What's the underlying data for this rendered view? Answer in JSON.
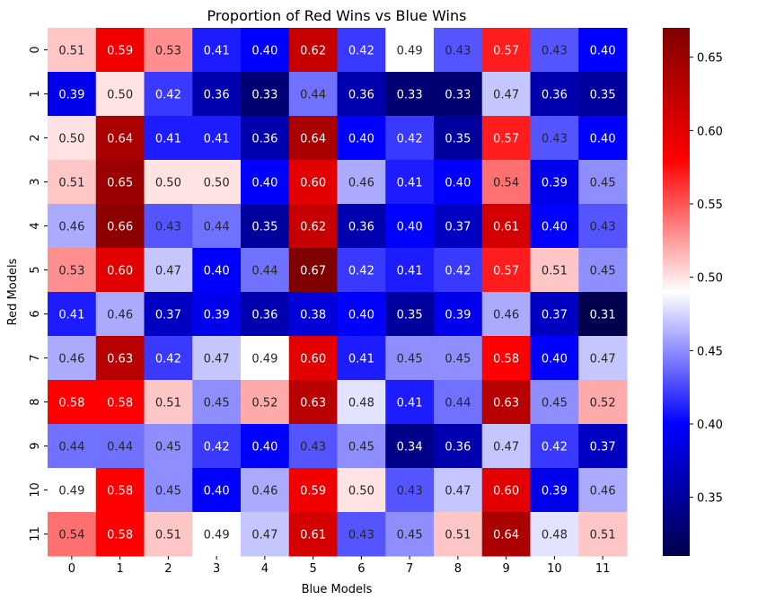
{
  "chart_data": {
    "type": "heatmap",
    "title": "Proportion of Red Wins vs Blue Wins",
    "xlabel": "Blue Models",
    "ylabel": "Red Models",
    "x_categories": [
      "0",
      "1",
      "2",
      "3",
      "4",
      "5",
      "6",
      "7",
      "8",
      "9",
      "10",
      "11"
    ],
    "y_categories": [
      "0",
      "1",
      "2",
      "3",
      "4",
      "5",
      "6",
      "7",
      "8",
      "9",
      "10",
      "11"
    ],
    "values": [
      [
        0.51,
        0.59,
        0.53,
        0.41,
        0.4,
        0.62,
        0.42,
        0.49,
        0.43,
        0.57,
        0.43,
        0.4
      ],
      [
        0.39,
        0.5,
        0.42,
        0.36,
        0.33,
        0.44,
        0.36,
        0.33,
        0.33,
        0.47,
        0.36,
        0.35
      ],
      [
        0.5,
        0.64,
        0.41,
        0.41,
        0.36,
        0.64,
        0.4,
        0.42,
        0.35,
        0.57,
        0.43,
        0.4
      ],
      [
        0.51,
        0.65,
        0.5,
        0.5,
        0.4,
        0.6,
        0.46,
        0.41,
        0.4,
        0.54,
        0.39,
        0.45
      ],
      [
        0.46,
        0.66,
        0.43,
        0.44,
        0.35,
        0.62,
        0.36,
        0.4,
        0.37,
        0.61,
        0.4,
        0.43
      ],
      [
        0.53,
        0.6,
        0.47,
        0.4,
        0.44,
        0.67,
        0.42,
        0.41,
        0.42,
        0.57,
        0.51,
        0.45
      ],
      [
        0.41,
        0.46,
        0.37,
        0.39,
        0.36,
        0.38,
        0.4,
        0.35,
        0.39,
        0.46,
        0.37,
        0.31
      ],
      [
        0.46,
        0.63,
        0.42,
        0.47,
        0.49,
        0.6,
        0.41,
        0.45,
        0.45,
        0.58,
        0.4,
        0.47
      ],
      [
        0.58,
        0.58,
        0.51,
        0.45,
        0.52,
        0.63,
        0.48,
        0.41,
        0.44,
        0.63,
        0.45,
        0.52
      ],
      [
        0.44,
        0.44,
        0.45,
        0.42,
        0.4,
        0.43,
        0.45,
        0.34,
        0.36,
        0.47,
        0.42,
        0.37
      ],
      [
        0.49,
        0.58,
        0.45,
        0.4,
        0.46,
        0.59,
        0.5,
        0.43,
        0.47,
        0.6,
        0.39,
        0.46
      ],
      [
        0.54,
        0.58,
        0.51,
        0.49,
        0.47,
        0.61,
        0.43,
        0.45,
        0.51,
        0.64,
        0.48,
        0.51
      ]
    ],
    "colormap": "seismic",
    "vmin": 0.31,
    "vmax": 0.67,
    "colorbar_ticks": [
      0.35,
      0.4,
      0.45,
      0.5,
      0.55,
      0.6,
      0.65
    ],
    "colorbar_tick_labels": [
      "0.35",
      "0.40",
      "0.45",
      "0.50",
      "0.55",
      "0.60",
      "0.65"
    ]
  }
}
